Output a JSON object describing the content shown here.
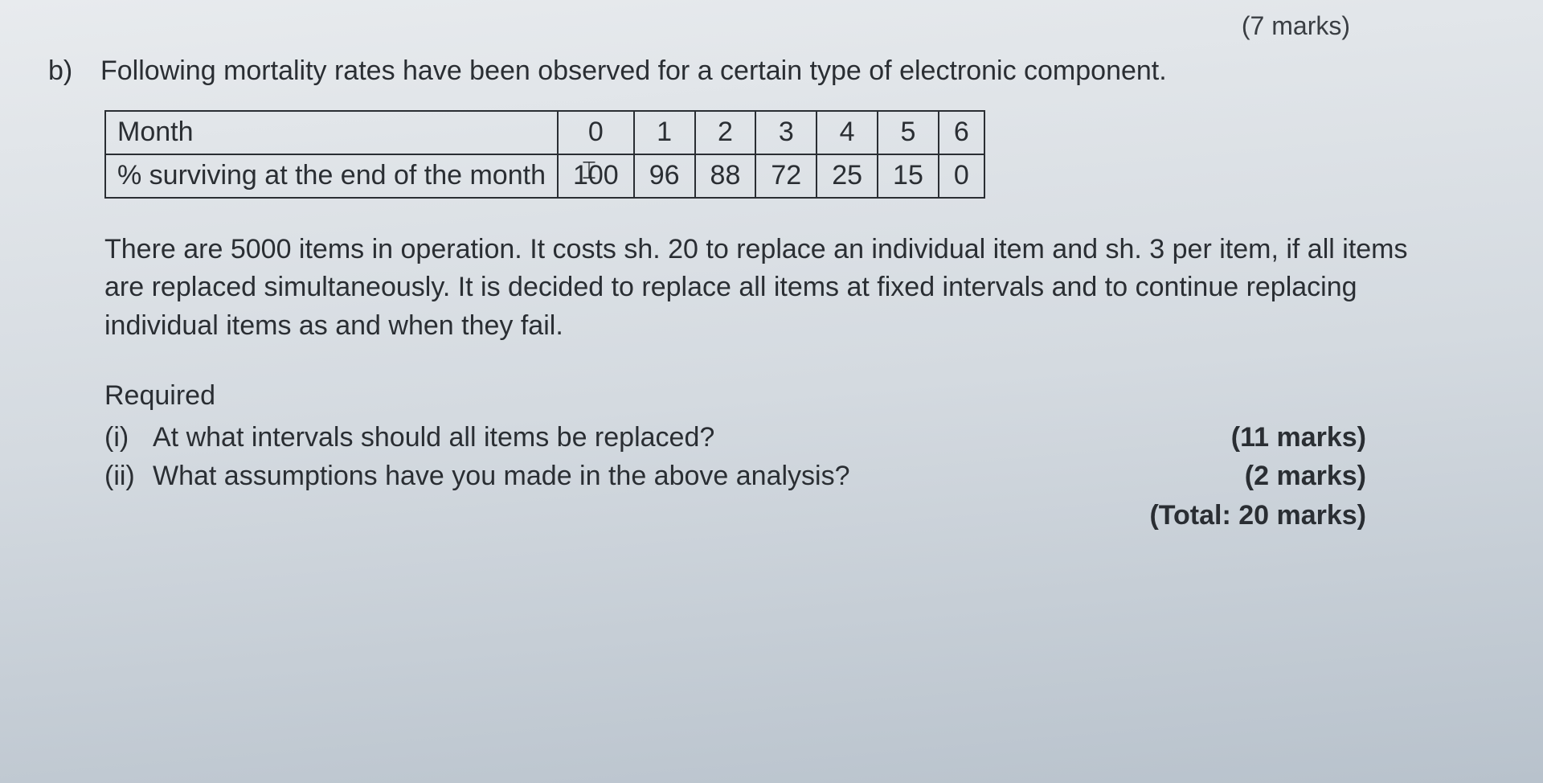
{
  "topMarks": "(7 marks)",
  "question": {
    "label": "b)",
    "text": "Following mortality rates have been observed for a certain type of electronic component."
  },
  "table": {
    "type": "table",
    "background_color": "transparent",
    "border_color": "#2a2e33",
    "font_size_pt": 26,
    "columns": [
      "Month",
      "0",
      "1",
      "2",
      "3",
      "4",
      "5",
      "6"
    ],
    "rows": [
      [
        "% surviving at the end of the month",
        "100",
        "96",
        "88",
        "72",
        "25",
        "15",
        "0"
      ]
    ]
  },
  "bodyText": "There are 5000 items in operation. It costs sh. 20 to replace an individual item and sh. 3 per item, if all items are replaced simultaneously. It is decided to replace all items at fixed intervals and to continue replacing individual items as and when they fail.",
  "required": {
    "label": "Required",
    "items": [
      {
        "num": "(i)",
        "text": "At what intervals should all items be replaced?",
        "marks": "(11 marks)"
      },
      {
        "num": "(ii)",
        "text": "What assumptions have you made in the above analysis?",
        "marks": "(2 marks)"
      }
    ],
    "total": "(Total: 20 marks)"
  },
  "colors": {
    "text": "#2a2e33",
    "background_top": "#e8ebee",
    "background_bottom": "#b8c2cc"
  }
}
